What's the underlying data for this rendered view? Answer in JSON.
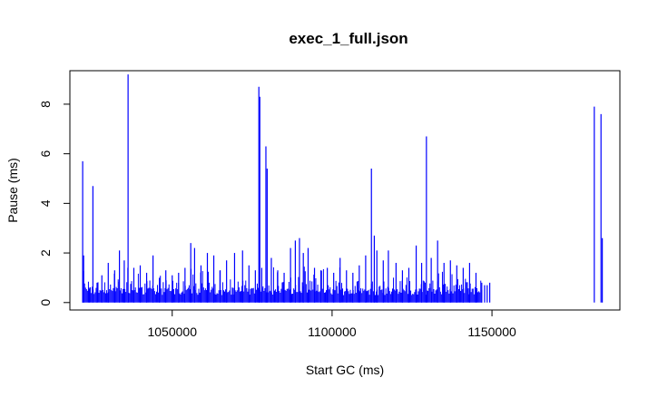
{
  "chart_data": {
    "type": "bar",
    "title": "exec_1_full.json",
    "xlabel": "Start GC (ms)",
    "ylabel": "Pause (ms)",
    "xlim": [
      1018000,
      1190000
    ],
    "ylim": [
      -0.3,
      9.35
    ],
    "x_ticks": [
      1050000,
      1100000,
      1150000
    ],
    "x_tick_labels": [
      "1050000",
      "1100000",
      "1150000"
    ],
    "y_ticks": [
      0,
      2,
      4,
      6,
      8
    ],
    "y_tick_labels": [
      "0",
      "2",
      "4",
      "6",
      "8"
    ],
    "color": "#0000ff",
    "grid": false,
    "legend": "none",
    "dense_region": {
      "x_start": 1022000,
      "x_end": 1147000,
      "step": 300,
      "typical_max": 0.9
    },
    "series": [
      {
        "values": [
          [
            1022000,
            5.7
          ],
          [
            1022300,
            1.9
          ],
          [
            1024000,
            0.6
          ],
          [
            1025200,
            4.7
          ],
          [
            1026500,
            0.8
          ],
          [
            1028000,
            1.1
          ],
          [
            1030000,
            1.6
          ],
          [
            1032000,
            1.3
          ],
          [
            1033500,
            2.1
          ],
          [
            1035000,
            1.7
          ],
          [
            1036200,
            9.2
          ],
          [
            1038000,
            1.4
          ],
          [
            1040000,
            1.5
          ],
          [
            1042000,
            1.2
          ],
          [
            1044000,
            1.9
          ],
          [
            1046000,
            1.0
          ],
          [
            1048000,
            1.3
          ],
          [
            1050000,
            1.1
          ],
          [
            1052000,
            1.2
          ],
          [
            1054000,
            1.4
          ],
          [
            1055800,
            2.4
          ],
          [
            1057000,
            2.2
          ],
          [
            1059000,
            1.5
          ],
          [
            1061000,
            2.0
          ],
          [
            1063000,
            1.9
          ],
          [
            1065000,
            1.3
          ],
          [
            1067000,
            1.7
          ],
          [
            1069500,
            2.0
          ],
          [
            1072000,
            2.1
          ],
          [
            1074000,
            1.5
          ],
          [
            1076000,
            1.3
          ],
          [
            1077100,
            8.7
          ],
          [
            1077400,
            8.3
          ],
          [
            1078000,
            1.4
          ],
          [
            1079300,
            6.3
          ],
          [
            1079700,
            5.4
          ],
          [
            1081000,
            1.8
          ],
          [
            1083000,
            1.3
          ],
          [
            1085000,
            1.2
          ],
          [
            1087000,
            2.2
          ],
          [
            1088500,
            2.5
          ],
          [
            1089800,
            2.6
          ],
          [
            1091000,
            2.0
          ],
          [
            1092500,
            2.2
          ],
          [
            1094500,
            1.4
          ],
          [
            1096500,
            1.3
          ],
          [
            1098500,
            1.4
          ],
          [
            1100500,
            1.2
          ],
          [
            1102500,
            1.8
          ],
          [
            1104500,
            1.3
          ],
          [
            1106500,
            1.2
          ],
          [
            1108500,
            1.5
          ],
          [
            1110500,
            1.9
          ],
          [
            1112300,
            5.4
          ],
          [
            1113200,
            2.7
          ],
          [
            1114000,
            2.1
          ],
          [
            1116000,
            1.7
          ],
          [
            1117600,
            2.1
          ],
          [
            1120000,
            1.6
          ],
          [
            1122000,
            1.3
          ],
          [
            1124000,
            1.4
          ],
          [
            1126300,
            2.3
          ],
          [
            1128000,
            1.6
          ],
          [
            1129500,
            6.7
          ],
          [
            1131000,
            1.8
          ],
          [
            1133000,
            2.5
          ],
          [
            1135000,
            1.6
          ],
          [
            1137000,
            1.7
          ],
          [
            1139000,
            1.5
          ],
          [
            1141000,
            1.4
          ],
          [
            1143000,
            1.6
          ],
          [
            1145000,
            1.2
          ],
          [
            1146800,
            0.8
          ],
          [
            1147700,
            0.7
          ],
          [
            1148500,
            0.7
          ],
          [
            1149300,
            0.8
          ],
          [
            1182000,
            7.9
          ],
          [
            1184100,
            7.6
          ],
          [
            1184500,
            2.6
          ]
        ]
      }
    ]
  }
}
